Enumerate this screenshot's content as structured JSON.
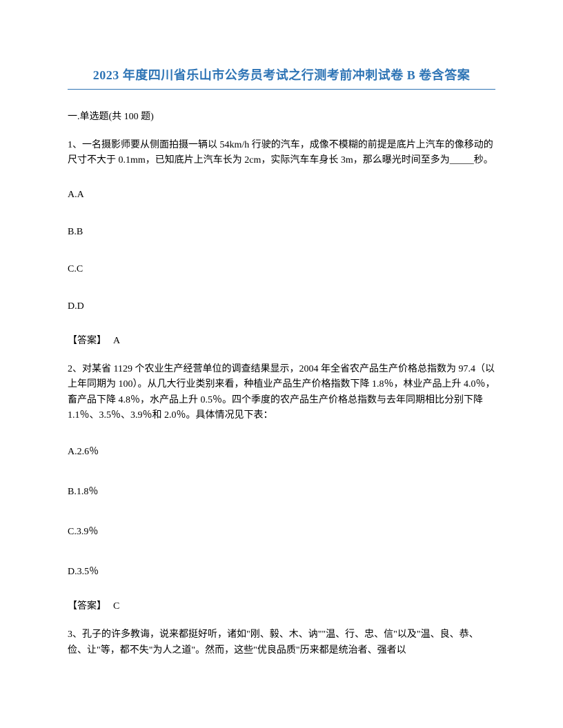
{
  "title": "2023 年度四川省乐山市公务员考试之行测考前冲刺试卷 B 卷含答案",
  "section_header": "一.单选题(共 100 题)",
  "questions": [
    {
      "number": "1、",
      "text": "一名摄影师要从侧面拍摄一辆以 54km/h 行驶的汽车，成像不模糊的前提是底片上汽车的像移动的尺寸不大于 0.1mm，已知底片上汽车长为 2cm，实际汽车车身长 3m，那么曝光时间至多为_____秒。",
      "options": [
        "A.A",
        "B.B",
        "C.C",
        "D.D"
      ],
      "answer_label": "【答案】",
      "answer_value": "A"
    },
    {
      "number": "2、",
      "text": "对某省 1129 个农业生产经营单位的调查结果显示，2004 年全省农产品生产价格总指数为 97.4（以上年同期为 100）。从几大行业类别来看，种植业产品生产价格指数下降 1.8％，林业产品上升 4.0％，畜产品下降 4.8％，水产品上升 0.5％。四个季度的农产品生产价格总指数与去年同期相比分别下降 1.1％、3.5％、3.9％和 2.0％。具体情况见下表：",
      "options": [
        "A.2.6％",
        "B.1.8％",
        "C.3.9％",
        "D.3.5％"
      ],
      "answer_label": "【答案】",
      "answer_value": "C"
    },
    {
      "number": "3、",
      "text": "孔子的许多教诲，说来都挺好听，诸如\"刚、毅、木、讷\"\"温、行、忠、信\"以及\"温、良、恭、俭、让\"等，都不失\"为人之道\"。然而，这些\"优良品质\"历来都是统治者、强者以"
    }
  ]
}
